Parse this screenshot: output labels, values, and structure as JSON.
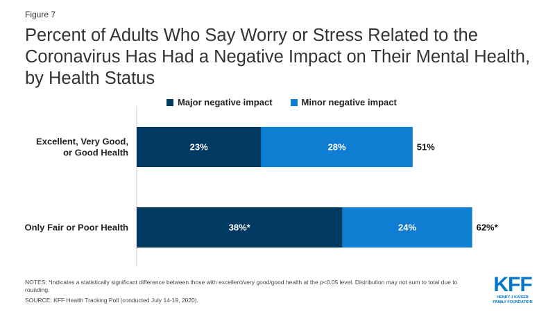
{
  "figure_label": "Figure 7",
  "title": "Percent of Adults Who Say Worry or Stress Related to the Coronavirus Has Had a Negative Impact on Their Mental Health, by Health Status",
  "colors": {
    "major": "#003a63",
    "minor": "#0f7dd1",
    "axis": "#cccccc"
  },
  "chart_data": {
    "type": "bar",
    "orientation": "horizontal",
    "stacked": true,
    "categories": [
      "Excellent, Very Good, or Good Health",
      "Only Fair or Poor Health"
    ],
    "category_lines": [
      [
        "Excellent, Very Good,",
        "or Good Health"
      ],
      [
        "Only Fair or Poor Health"
      ]
    ],
    "series": [
      {
        "name": "Major negative impact",
        "values": [
          23,
          38
        ],
        "labels": [
          "23%",
          "38%*"
        ]
      },
      {
        "name": "Minor negative impact",
        "values": [
          28,
          24
        ],
        "labels": [
          "28%",
          "24%"
        ]
      }
    ],
    "totals": [
      51,
      62
    ],
    "total_labels": [
      "51%",
      "62%*"
    ],
    "xlim": [
      0,
      70
    ],
    "legend": "top",
    "grid": false
  },
  "legend": {
    "major": "Major negative impact",
    "minor": "Minor negative impact"
  },
  "notes": "NOTES: *Indicates a statistically significant difference between those with excellent/very good/good health at the p<0.05 level. Distribution may not sum to total due to rounding.",
  "source": "SOURCE: KFF Health Tracking Poll (conducted July 14-19, 2020).",
  "logo": {
    "main": "KFF",
    "line1": "Henry J Kaiser",
    "line2": "Family Foundation"
  }
}
